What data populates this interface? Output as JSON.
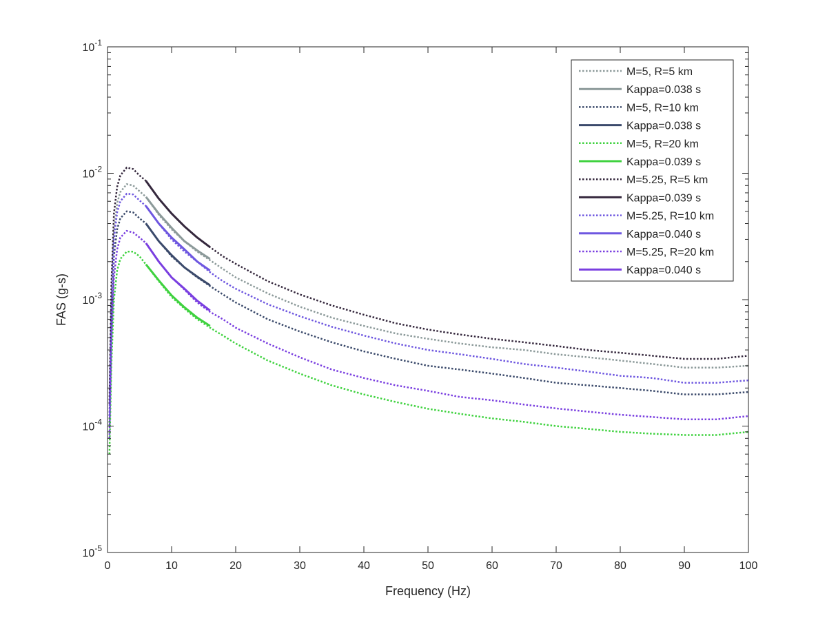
{
  "chart_data": {
    "type": "line",
    "title": "",
    "xlabel": "Frequency (Hz)",
    "ylabel": "FAS (g-s)",
    "xlim": [
      0,
      100
    ],
    "ylim": [
      1e-05,
      0.1
    ],
    "yscale": "log",
    "grid": false,
    "legend_position": "top-right",
    "x_ticks": [
      0,
      10,
      20,
      30,
      40,
      50,
      60,
      70,
      80,
      90,
      100
    ],
    "x_tick_labels": [
      "0",
      "10",
      "20",
      "30",
      "40",
      "50",
      "60",
      "70",
      "80",
      "90",
      "100"
    ],
    "y_ticks": [
      1e-05,
      0.0001,
      0.001,
      0.01,
      0.1
    ],
    "y_tick_labels": [
      {
        "base": "10",
        "exp": "-5"
      },
      {
        "base": "10",
        "exp": "-4"
      },
      {
        "base": "10",
        "exp": "-3"
      },
      {
        "base": "10",
        "exp": "-2"
      },
      {
        "base": "10",
        "exp": "-1"
      }
    ],
    "series": [
      {
        "name": "M=5, R=5 km",
        "color": "#8c9a9a",
        "style": "dotted",
        "points": [
          [
            0.3,
            0.0001
          ],
          [
            0.6,
            0.0009
          ],
          [
            1,
            0.0035
          ],
          [
            1.5,
            0.0058
          ],
          [
            2,
            0.0071
          ],
          [
            3,
            0.0082
          ],
          [
            4,
            0.008
          ],
          [
            5,
            0.0072
          ],
          [
            6,
            0.0065
          ],
          [
            8,
            0.0047
          ],
          [
            10,
            0.0036
          ],
          [
            12,
            0.0029
          ],
          [
            14,
            0.0024
          ],
          [
            16,
            0.00205
          ],
          [
            18,
            0.00175
          ],
          [
            20,
            0.0015
          ],
          [
            25,
            0.00112
          ],
          [
            30,
            0.00088
          ],
          [
            35,
            0.00072
          ],
          [
            40,
            0.00062
          ],
          [
            45,
            0.00054
          ],
          [
            50,
            0.00049
          ],
          [
            55,
            0.00045
          ],
          [
            60,
            0.00042
          ],
          [
            65,
            0.0004
          ],
          [
            70,
            0.00037
          ],
          [
            75,
            0.00035
          ],
          [
            80,
            0.00033
          ],
          [
            85,
            0.00031
          ],
          [
            90,
            0.00029
          ],
          [
            95,
            0.00029
          ],
          [
            100,
            0.0003
          ]
        ]
      },
      {
        "name": "Kappa=0.038 s",
        "color": "#8c9a9a",
        "style": "solid",
        "points": [
          [
            6,
            0.0065
          ],
          [
            8,
            0.0048
          ],
          [
            10,
            0.0037
          ],
          [
            12,
            0.0029
          ],
          [
            14,
            0.00245
          ],
          [
            16,
            0.0021
          ]
        ]
      },
      {
        "name": "M=5, R=10 km",
        "color": "#3b4a6b",
        "style": "dotted",
        "points": [
          [
            0.3,
            0.0001
          ],
          [
            0.6,
            0.0006
          ],
          [
            1,
            0.0022
          ],
          [
            1.5,
            0.0036
          ],
          [
            2,
            0.0044
          ],
          [
            3,
            0.005
          ],
          [
            4,
            0.0049
          ],
          [
            5,
            0.0044
          ],
          [
            6,
            0.004
          ],
          [
            8,
            0.0029
          ],
          [
            10,
            0.0022
          ],
          [
            12,
            0.0018
          ],
          [
            14,
            0.0015
          ],
          [
            16,
            0.00128
          ],
          [
            18,
            0.0011
          ],
          [
            20,
            0.00095
          ],
          [
            25,
            0.0007
          ],
          [
            30,
            0.00056
          ],
          [
            35,
            0.00046
          ],
          [
            40,
            0.00039
          ],
          [
            45,
            0.00034
          ],
          [
            50,
            0.0003
          ],
          [
            55,
            0.00028
          ],
          [
            60,
            0.00026
          ],
          [
            65,
            0.00024
          ],
          [
            70,
            0.00022
          ],
          [
            75,
            0.00021
          ],
          [
            80,
            0.0002
          ],
          [
            85,
            0.00019
          ],
          [
            90,
            0.000178
          ],
          [
            95,
            0.000178
          ],
          [
            100,
            0.000186
          ]
        ]
      },
      {
        "name": "Kappa=0.038 s",
        "color": "#3b4a6b",
        "style": "solid",
        "points": [
          [
            6,
            0.004
          ],
          [
            8,
            0.0029
          ],
          [
            10,
            0.00225
          ],
          [
            12,
            0.0018
          ],
          [
            14,
            0.00152
          ],
          [
            16,
            0.0013
          ]
        ]
      },
      {
        "name": "M=5, R=20 km",
        "color": "#3fd23f",
        "style": "dotted",
        "points": [
          [
            0.3,
            6e-05
          ],
          [
            0.6,
            0.0003
          ],
          [
            1,
            0.001
          ],
          [
            1.5,
            0.0017
          ],
          [
            2,
            0.0021
          ],
          [
            3,
            0.0024
          ],
          [
            4,
            0.0024
          ],
          [
            5,
            0.0022
          ],
          [
            6,
            0.0019
          ],
          [
            8,
            0.0014
          ],
          [
            10,
            0.00105
          ],
          [
            12,
            0.00085
          ],
          [
            14,
            0.0007
          ],
          [
            16,
            0.0006
          ],
          [
            18,
            0.00052
          ],
          [
            20,
            0.00045
          ],
          [
            25,
            0.00033
          ],
          [
            30,
            0.00026
          ],
          [
            35,
            0.00021
          ],
          [
            40,
            0.000178
          ],
          [
            45,
            0.000155
          ],
          [
            50,
            0.000137
          ],
          [
            55,
            0.000125
          ],
          [
            60,
            0.000115
          ],
          [
            65,
            0.000108
          ],
          [
            70,
            0.0001
          ],
          [
            75,
            9.5e-05
          ],
          [
            80,
            9e-05
          ],
          [
            85,
            8.7e-05
          ],
          [
            90,
            8.5e-05
          ],
          [
            95,
            8.5e-05
          ],
          [
            100,
            9e-05
          ]
        ]
      },
      {
        "name": "Kappa=0.039 s",
        "color": "#3fd23f",
        "style": "solid",
        "points": [
          [
            6,
            0.0019
          ],
          [
            8,
            0.00142
          ],
          [
            10,
            0.00108
          ],
          [
            12,
            0.00087
          ],
          [
            14,
            0.00072
          ],
          [
            16,
            0.00062
          ]
        ]
      },
      {
        "name": "M=5.25, R=5 km",
        "color": "#35283d",
        "style": "dotted",
        "points": [
          [
            0.3,
            0.00015
          ],
          [
            0.6,
            0.0013
          ],
          [
            1,
            0.0048
          ],
          [
            1.5,
            0.0078
          ],
          [
            2,
            0.0096
          ],
          [
            3,
            0.0111
          ],
          [
            4,
            0.0108
          ],
          [
            5,
            0.0096
          ],
          [
            6,
            0.0087
          ],
          [
            8,
            0.0063
          ],
          [
            10,
            0.0048
          ],
          [
            12,
            0.0038
          ],
          [
            14,
            0.0031
          ],
          [
            16,
            0.0026
          ],
          [
            18,
            0.0022
          ],
          [
            20,
            0.00192
          ],
          [
            25,
            0.0014
          ],
          [
            30,
            0.0011
          ],
          [
            35,
            0.0009
          ],
          [
            40,
            0.00076
          ],
          [
            45,
            0.00065
          ],
          [
            50,
            0.00058
          ],
          [
            55,
            0.00053
          ],
          [
            60,
            0.00049
          ],
          [
            65,
            0.00046
          ],
          [
            70,
            0.00043
          ],
          [
            75,
            0.0004
          ],
          [
            80,
            0.00038
          ],
          [
            85,
            0.00036
          ],
          [
            90,
            0.00034
          ],
          [
            95,
            0.00034
          ],
          [
            100,
            0.00036
          ]
        ]
      },
      {
        "name": "Kappa=0.039 s",
        "color": "#35283d",
        "style": "solid",
        "points": [
          [
            6,
            0.0087
          ],
          [
            8,
            0.0063
          ],
          [
            10,
            0.0048
          ],
          [
            12,
            0.0038
          ],
          [
            14,
            0.0031
          ],
          [
            16,
            0.0026
          ]
        ]
      },
      {
        "name": "M=5.25, R=10 km",
        "color": "#6e57e0",
        "style": "dotted",
        "points": [
          [
            0.3,
            0.00012
          ],
          [
            0.6,
            0.0008
          ],
          [
            1,
            0.003
          ],
          [
            1.5,
            0.0049
          ],
          [
            2,
            0.006
          ],
          [
            3,
            0.0069
          ],
          [
            4,
            0.0068
          ],
          [
            5,
            0.0061
          ],
          [
            6,
            0.0055
          ],
          [
            8,
            0.004
          ],
          [
            10,
            0.003
          ],
          [
            12,
            0.0024
          ],
          [
            14,
            0.002
          ],
          [
            16,
            0.00165
          ],
          [
            18,
            0.0014
          ],
          [
            20,
            0.00122
          ],
          [
            25,
            0.00092
          ],
          [
            30,
            0.00074
          ],
          [
            35,
            0.00061
          ],
          [
            40,
            0.00052
          ],
          [
            45,
            0.00045
          ],
          [
            50,
            0.0004
          ],
          [
            55,
            0.00037
          ],
          [
            60,
            0.00034
          ],
          [
            65,
            0.00031
          ],
          [
            70,
            0.00029
          ],
          [
            75,
            0.00027
          ],
          [
            80,
            0.00025
          ],
          [
            85,
            0.00024
          ],
          [
            90,
            0.00022
          ],
          [
            95,
            0.00022
          ],
          [
            100,
            0.00023
          ]
        ]
      },
      {
        "name": "Kappa=0.040 s",
        "color": "#6e57e0",
        "style": "solid",
        "points": [
          [
            6,
            0.0055
          ],
          [
            8,
            0.004
          ],
          [
            10,
            0.0031
          ],
          [
            12,
            0.0025
          ],
          [
            14,
            0.002
          ],
          [
            16,
            0.0017
          ]
        ]
      },
      {
        "name": "M=5.25, R=20 km",
        "color": "#7a3fe0",
        "style": "dotted",
        "points": [
          [
            0.3,
            8e-05
          ],
          [
            0.6,
            0.00045
          ],
          [
            1,
            0.0015
          ],
          [
            1.5,
            0.0025
          ],
          [
            2,
            0.0031
          ],
          [
            3,
            0.0035
          ],
          [
            4,
            0.0034
          ],
          [
            5,
            0.0031
          ],
          [
            6,
            0.0028
          ],
          [
            8,
            0.002
          ],
          [
            10,
            0.0015
          ],
          [
            12,
            0.0012
          ],
          [
            14,
            0.00095
          ],
          [
            16,
            0.0008
          ],
          [
            18,
            0.0007
          ],
          [
            20,
            0.0006
          ],
          [
            25,
            0.00045
          ],
          [
            30,
            0.00035
          ],
          [
            35,
            0.00028
          ],
          [
            40,
            0.00024
          ],
          [
            45,
            0.00021
          ],
          [
            50,
            0.00019
          ],
          [
            55,
            0.00017
          ],
          [
            60,
            0.00016
          ],
          [
            65,
            0.000148
          ],
          [
            70,
            0.000138
          ],
          [
            75,
            0.00013
          ],
          [
            80,
            0.000123
          ],
          [
            85,
            0.000118
          ],
          [
            90,
            0.000113
          ],
          [
            95,
            0.000113
          ],
          [
            100,
            0.00012
          ]
        ]
      },
      {
        "name": "Kappa=0.040 s",
        "color": "#7a3fe0",
        "style": "solid",
        "points": [
          [
            6,
            0.0028
          ],
          [
            8,
            0.002
          ],
          [
            10,
            0.0015
          ],
          [
            12,
            0.00122
          ],
          [
            14,
            0.00098
          ],
          [
            16,
            0.00082
          ]
        ]
      }
    ]
  }
}
